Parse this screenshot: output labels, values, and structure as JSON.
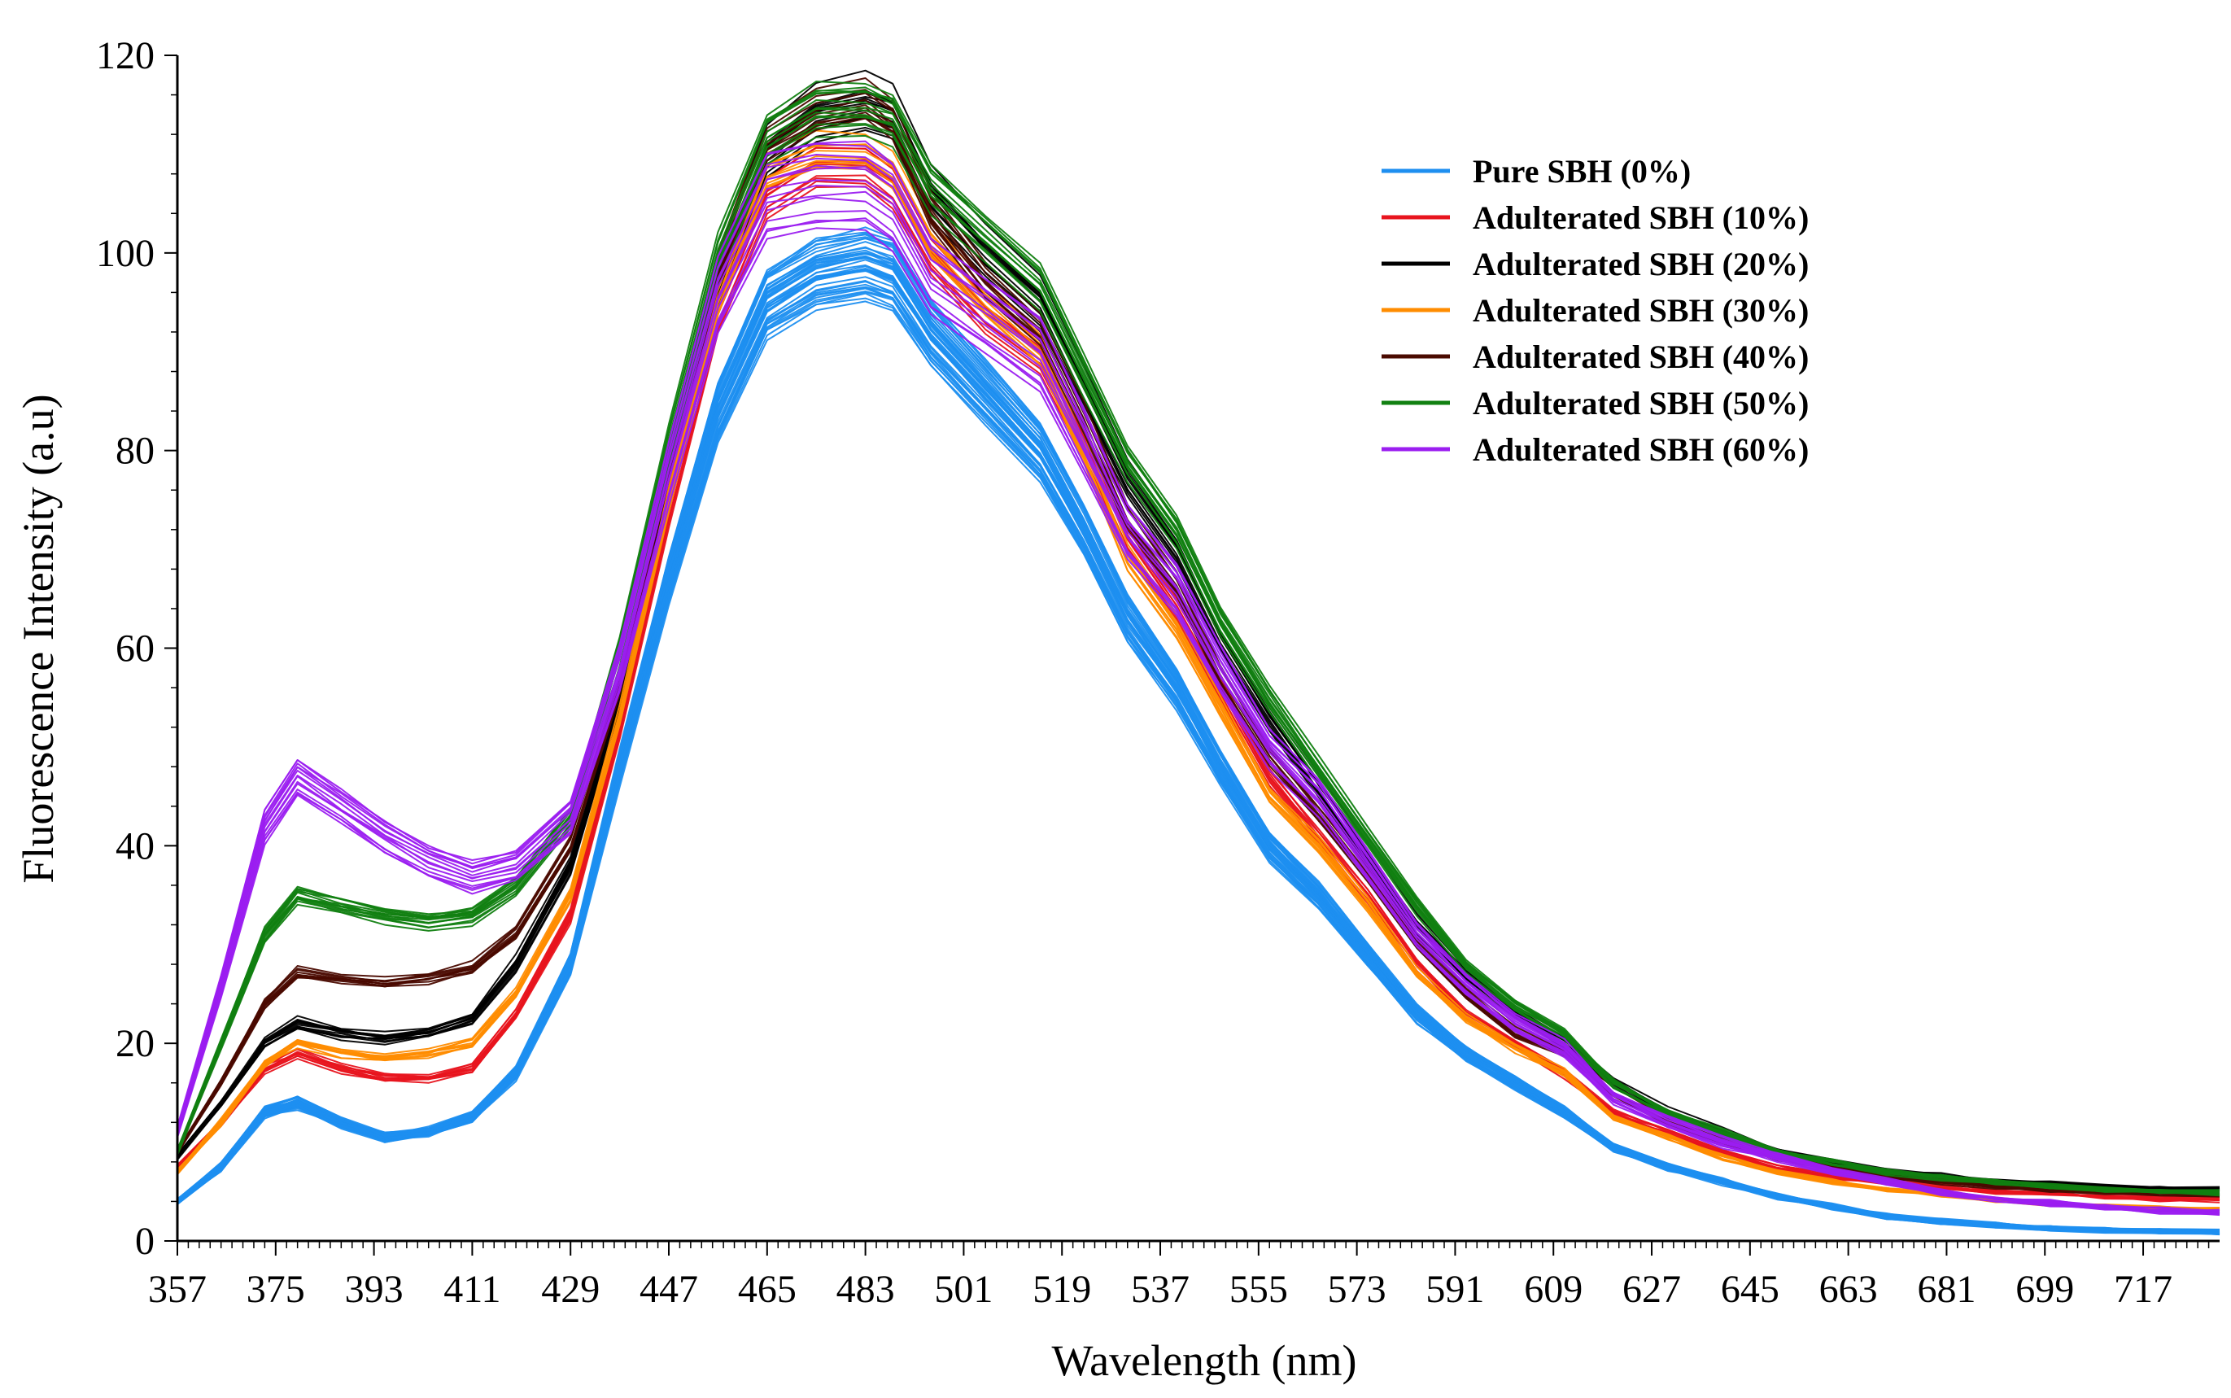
{
  "chart_data": {
    "type": "line",
    "xlabel": "Wavelength (nm)",
    "ylabel": "Fluorescence Intensity (a.u)",
    "xlim": [
      357,
      731
    ],
    "ylim": [
      0,
      120
    ],
    "x_ticks": [
      357,
      375,
      393,
      411,
      429,
      447,
      465,
      483,
      501,
      519,
      537,
      555,
      573,
      591,
      609,
      627,
      645,
      663,
      681,
      699,
      717
    ],
    "y_ticks": [
      0,
      20,
      40,
      60,
      80,
      100,
      120
    ],
    "legend_position": "top-right",
    "grid": false,
    "x": [
      357,
      365,
      373,
      379,
      387,
      395,
      403,
      411,
      419,
      429,
      438,
      447,
      456,
      465,
      474,
      483,
      488,
      495,
      505,
      515,
      523,
      531,
      540,
      548,
      557,
      566,
      575,
      584,
      593,
      602,
      611,
      620,
      630,
      640,
      650,
      660,
      670,
      680,
      690,
      700,
      710,
      720,
      731
    ],
    "series": [
      {
        "name": "Pure SBH (0%)",
        "color": "#1E8FF0",
        "replicates": 40,
        "spread": 7,
        "values": [
          4,
          7.5,
          13,
          14,
          12,
          10.5,
          11,
          12.5,
          17,
          28,
          48,
          67,
          84,
          95,
          98,
          99,
          98,
          92,
          86,
          80,
          72,
          63,
          56,
          48,
          40,
          35,
          29,
          23,
          19,
          16,
          13,
          9.5,
          7.5,
          6,
          4.5,
          3.5,
          2.5,
          2,
          1.6,
          1.3,
          1.1,
          1,
          0.9
        ]
      },
      {
        "name": "Adulterated SBH (10%)",
        "color": "#E8141E",
        "replicates": 10,
        "spread": 3,
        "values": [
          7.5,
          12,
          17.5,
          19,
          17.5,
          16.5,
          16.5,
          17.5,
          23,
          33,
          52,
          74,
          94,
          106,
          109,
          109,
          107,
          100,
          94,
          90,
          81,
          71,
          64,
          56,
          47,
          41,
          35,
          28,
          23,
          20,
          17,
          13,
          11,
          9,
          7.5,
          6.5,
          6,
          5.5,
          5,
          4.8,
          4.5,
          4.3,
          4.2
        ]
      },
      {
        "name": "Adulterated SBH (20%)",
        "color": "#000000",
        "replicates": 12,
        "spread": 4,
        "values": [
          8.5,
          14,
          20,
          22,
          21,
          20.5,
          21,
          22.5,
          28,
          38,
          55,
          77,
          97,
          110,
          114,
          115,
          114,
          106,
          100,
          95,
          86,
          77,
          70,
          61,
          53,
          46,
          39,
          32,
          27,
          23,
          20,
          16,
          13,
          11,
          9,
          8,
          7,
          6.5,
          6,
          5.8,
          5.5,
          5.3,
          5.2
        ]
      },
      {
        "name": "Adulterated SBH (30%)",
        "color": "#FF8C00",
        "replicates": 10,
        "spread": 3,
        "values": [
          7,
          12,
          18,
          20,
          19,
          18.5,
          19,
          20,
          25,
          35,
          53,
          75,
          95,
          108,
          110,
          110,
          108,
          101,
          95,
          90,
          80,
          69,
          62,
          54,
          45,
          40,
          34,
          27,
          22.5,
          19.5,
          17,
          12.5,
          10.5,
          8.5,
          7,
          6,
          5.2,
          4.7,
          4.2,
          3.8,
          3.5,
          3.3,
          3.2
        ]
      },
      {
        "name": "Adulterated SBH (40%)",
        "color": "#4A0A00",
        "replicates": 10,
        "spread": 3,
        "values": [
          9,
          16,
          24,
          27,
          26.5,
          26,
          26.5,
          27.5,
          31,
          40,
          56,
          78,
          98,
          111,
          114,
          115,
          113,
          104,
          97,
          92,
          83,
          73,
          66,
          57,
          49,
          43,
          37,
          30,
          25,
          21,
          19,
          15,
          12,
          10,
          8.5,
          7.5,
          6.5,
          6,
          5.5,
          5.2,
          5,
          4.8,
          4.7
        ]
      },
      {
        "name": "Adulterated SBH (50%)",
        "color": "#118011",
        "replicates": 14,
        "spread": 4,
        "values": [
          9,
          20,
          31,
          35,
          34,
          33,
          32.5,
          33,
          36,
          43,
          60,
          81,
          100,
          112,
          115,
          115,
          114,
          107,
          102,
          97,
          88,
          79,
          72,
          63,
          55,
          48,
          41,
          34,
          28,
          24,
          21,
          16,
          13,
          11,
          9,
          8,
          7,
          6.5,
          6,
          5.5,
          5.2,
          5,
          4.9
        ]
      },
      {
        "name": "Adulterated SBH (60%)",
        "color": "#9B1EF0",
        "replicates": 14,
        "spread": 8,
        "values": [
          11,
          26,
          42,
          47,
          44,
          41,
          38.5,
          37,
          38,
          43,
          58,
          78,
          96,
          106,
          107,
          107,
          105,
          98,
          94,
          90,
          81,
          72,
          66,
          58,
          50,
          45,
          38,
          31,
          26,
          22,
          19.5,
          14.5,
          12,
          10,
          8.5,
          7,
          6,
          5,
          4.3,
          3.8,
          3.4,
          3.1,
          2.9
        ]
      }
    ]
  }
}
